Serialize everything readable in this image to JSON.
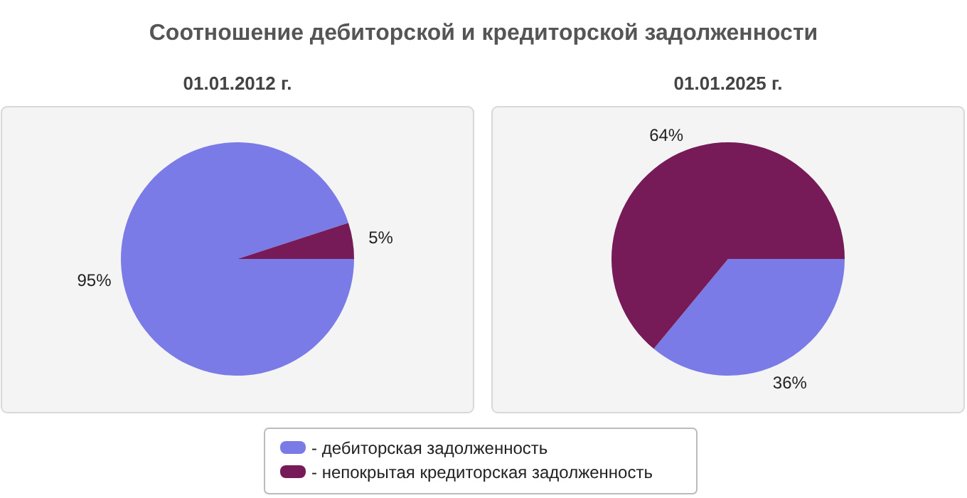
{
  "chart_data": [
    {
      "type": "pie",
      "title": "Соотношение дебиторской и кредиторской задолженности",
      "subtitle": "01.01.2012 г.",
      "categories": [
        "- дебиторская задолженность",
        "- непокрытая кредиторская задолженность"
      ],
      "values": [
        95,
        5
      ],
      "colors": [
        "#7b7be8",
        "#761a58"
      ],
      "value_labels": [
        "95%",
        "5%"
      ],
      "legend": "bottom"
    },
    {
      "type": "pie",
      "subtitle": "01.01.2025 г.",
      "categories": [
        null,
        null
      ],
      "values": [
        36,
        64
      ],
      "colors": [
        "#7b7be8",
        "#761a58"
      ],
      "value_labels": [
        "36%",
        "64%"
      ]
    }
  ]
}
